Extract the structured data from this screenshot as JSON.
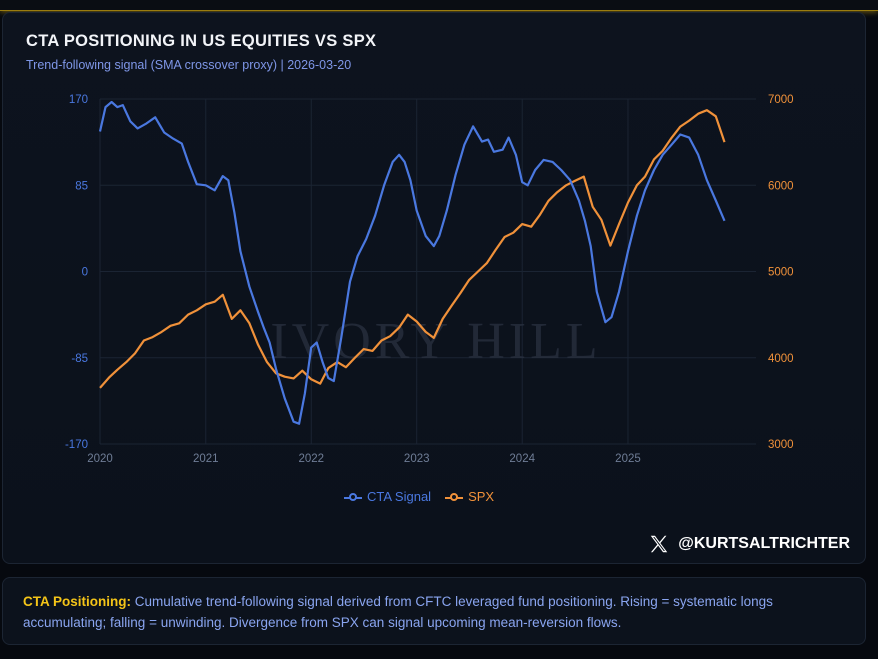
{
  "header": {
    "title": "CTA POSITIONING IN US EQUITIES VS SPX",
    "subtitle": "Trend-following signal (SMA crossover proxy) | 2026-03-20"
  },
  "colors": {
    "cta": "#4a78e0",
    "spx": "#f0913a",
    "accent": "#f5c518",
    "grid": "#1b2433"
  },
  "watermark": "IVORY HILL",
  "credit": {
    "icon": "x-logo-icon",
    "handle": "@KURTSALTRICHTER"
  },
  "note": {
    "label": "CTA Positioning:",
    "text": " Cumulative trend-following signal derived from CFTC leveraged fund positioning. Rising = systematic longs accumulating; falling = unwinding. Divergence from SPX can signal upcoming mean-reversion flows."
  },
  "chart_data": {
    "type": "line",
    "title": "CTA POSITIONING IN US EQUITIES VS SPX",
    "x_range": [
      "2020-01-01",
      "2026-03-20"
    ],
    "x_ticks": [
      "2020",
      "2021",
      "2022",
      "2023",
      "2024",
      "2025"
    ],
    "y_left": {
      "ticks": [
        "170",
        "85",
        "0",
        "-85",
        "-170"
      ],
      "range": [
        -170,
        170
      ]
    },
    "y_right": {
      "ticks": [
        "7000",
        "6000",
        "5000",
        "4000",
        "3000"
      ],
      "range": [
        3000,
        7000
      ]
    },
    "legend": {
      "position": "bottom-center"
    },
    "grid": true,
    "series": [
      {
        "name": "CTA Signal",
        "axis": "left",
        "points": [
          [
            "2020-01-01",
            138
          ],
          [
            "2020-01-20",
            162
          ],
          [
            "2020-02-10",
            167
          ],
          [
            "2020-03-01",
            162
          ],
          [
            "2020-03-20",
            164
          ],
          [
            "2020-04-15",
            148
          ],
          [
            "2020-05-10",
            141
          ],
          [
            "2020-06-10",
            146
          ],
          [
            "2020-07-10",
            152
          ],
          [
            "2020-08-10",
            137
          ],
          [
            "2020-09-10",
            131
          ],
          [
            "2020-10-10",
            126
          ],
          [
            "2020-11-01",
            108
          ],
          [
            "2020-12-01",
            86
          ],
          [
            "2021-01-01",
            85
          ],
          [
            "2021-02-01",
            80
          ],
          [
            "2021-03-01",
            94
          ],
          [
            "2021-03-20",
            90
          ],
          [
            "2021-04-10",
            58
          ],
          [
            "2021-05-01",
            20
          ],
          [
            "2021-06-01",
            -15
          ],
          [
            "2021-07-01",
            -40
          ],
          [
            "2021-07-20",
            -55
          ],
          [
            "2021-08-10",
            -70
          ],
          [
            "2021-09-01",
            -96
          ],
          [
            "2021-10-01",
            -125
          ],
          [
            "2021-11-01",
            -148
          ],
          [
            "2021-11-20",
            -150
          ],
          [
            "2021-12-10",
            -120
          ],
          [
            "2022-01-01",
            -75
          ],
          [
            "2022-01-20",
            -70
          ],
          [
            "2022-02-10",
            -90
          ],
          [
            "2022-03-01",
            -105
          ],
          [
            "2022-03-20",
            -108
          ],
          [
            "2022-04-15",
            -65
          ],
          [
            "2022-05-15",
            -10
          ],
          [
            "2022-06-10",
            15
          ],
          [
            "2022-07-10",
            32
          ],
          [
            "2022-08-10",
            55
          ],
          [
            "2022-09-10",
            85
          ],
          [
            "2022-10-10",
            108
          ],
          [
            "2022-11-01",
            115
          ],
          [
            "2022-11-20",
            108
          ],
          [
            "2022-12-10",
            90
          ],
          [
            "2023-01-01",
            60
          ],
          [
            "2023-02-01",
            35
          ],
          [
            "2023-03-01",
            25
          ],
          [
            "2023-03-20",
            35
          ],
          [
            "2023-04-15",
            60
          ],
          [
            "2023-05-15",
            95
          ],
          [
            "2023-06-15",
            125
          ],
          [
            "2023-07-15",
            143
          ],
          [
            "2023-08-15",
            128
          ],
          [
            "2023-09-05",
            130
          ],
          [
            "2023-09-25",
            118
          ],
          [
            "2023-10-25",
            120
          ],
          [
            "2023-11-15",
            132
          ],
          [
            "2023-12-10",
            115
          ],
          [
            "2024-01-01",
            88
          ],
          [
            "2024-01-20",
            85
          ],
          [
            "2024-02-15",
            100
          ],
          [
            "2024-03-15",
            110
          ],
          [
            "2024-04-15",
            108
          ],
          [
            "2024-05-15",
            100
          ],
          [
            "2024-06-15",
            90
          ],
          [
            "2024-07-15",
            70
          ],
          [
            "2024-08-05",
            50
          ],
          [
            "2024-08-25",
            25
          ],
          [
            "2024-09-15",
            -20
          ],
          [
            "2024-10-15",
            -50
          ],
          [
            "2024-11-05",
            -45
          ],
          [
            "2024-12-01",
            -20
          ],
          [
            "2025-01-01",
            20
          ],
          [
            "2025-02-01",
            55
          ],
          [
            "2025-03-01",
            80
          ],
          [
            "2025-04-01",
            100
          ],
          [
            "2025-05-01",
            115
          ],
          [
            "2025-06-01",
            125
          ],
          [
            "2025-07-01",
            135
          ],
          [
            "2025-08-01",
            132
          ],
          [
            "2025-09-01",
            115
          ],
          [
            "2025-10-01",
            90
          ],
          [
            "2025-11-01",
            70
          ],
          [
            "2025-12-01",
            50
          ]
        ]
      },
      {
        "name": "SPX",
        "axis": "right",
        "points": [
          [
            "2020-01-01",
            3650
          ],
          [
            "2020-02-01",
            3770
          ],
          [
            "2020-03-01",
            3860
          ],
          [
            "2020-04-01",
            3950
          ],
          [
            "2020-05-01",
            4050
          ],
          [
            "2020-06-01",
            4200
          ],
          [
            "2020-07-01",
            4240
          ],
          [
            "2020-08-01",
            4300
          ],
          [
            "2020-09-01",
            4370
          ],
          [
            "2020-10-01",
            4400
          ],
          [
            "2020-11-01",
            4500
          ],
          [
            "2020-12-01",
            4550
          ],
          [
            "2021-01-01",
            4620
          ],
          [
            "2021-02-01",
            4650
          ],
          [
            "2021-03-01",
            4730
          ],
          [
            "2021-04-01",
            4450
          ],
          [
            "2021-05-01",
            4550
          ],
          [
            "2021-06-01",
            4400
          ],
          [
            "2021-07-01",
            4150
          ],
          [
            "2021-08-01",
            3950
          ],
          [
            "2021-09-01",
            3820
          ],
          [
            "2021-10-01",
            3780
          ],
          [
            "2021-11-01",
            3760
          ],
          [
            "2021-12-01",
            3850
          ],
          [
            "2022-01-01",
            3750
          ],
          [
            "2022-02-01",
            3700
          ],
          [
            "2022-03-01",
            3880
          ],
          [
            "2022-04-01",
            3950
          ],
          [
            "2022-05-01",
            3890
          ],
          [
            "2022-06-01",
            4000
          ],
          [
            "2022-07-01",
            4100
          ],
          [
            "2022-08-01",
            4080
          ],
          [
            "2022-09-01",
            4200
          ],
          [
            "2022-10-01",
            4250
          ],
          [
            "2022-11-01",
            4350
          ],
          [
            "2022-12-01",
            4500
          ],
          [
            "2023-01-01",
            4420
          ],
          [
            "2023-02-01",
            4300
          ],
          [
            "2023-03-01",
            4230
          ],
          [
            "2023-04-01",
            4450
          ],
          [
            "2023-05-01",
            4600
          ],
          [
            "2023-06-01",
            4750
          ],
          [
            "2023-07-01",
            4900
          ],
          [
            "2023-08-01",
            5000
          ],
          [
            "2023-09-01",
            5100
          ],
          [
            "2023-10-01",
            5250
          ],
          [
            "2023-11-01",
            5400
          ],
          [
            "2023-12-01",
            5450
          ],
          [
            "2024-01-01",
            5550
          ],
          [
            "2024-02-01",
            5520
          ],
          [
            "2024-03-01",
            5650
          ],
          [
            "2024-04-01",
            5820
          ],
          [
            "2024-05-01",
            5920
          ],
          [
            "2024-06-01",
            6000
          ],
          [
            "2024-07-01",
            6050
          ],
          [
            "2024-08-01",
            6100
          ],
          [
            "2024-09-01",
            5750
          ],
          [
            "2024-10-01",
            5600
          ],
          [
            "2024-11-01",
            5300
          ],
          [
            "2024-12-01",
            5550
          ],
          [
            "2025-01-01",
            5800
          ],
          [
            "2025-02-01",
            6000
          ],
          [
            "2025-03-01",
            6100
          ],
          [
            "2025-04-01",
            6300
          ],
          [
            "2025-05-01",
            6400
          ],
          [
            "2025-06-01",
            6550
          ],
          [
            "2025-07-01",
            6680
          ],
          [
            "2025-08-01",
            6750
          ],
          [
            "2025-09-01",
            6830
          ],
          [
            "2025-10-01",
            6870
          ],
          [
            "2025-11-01",
            6800
          ],
          [
            "2025-12-01",
            6500
          ]
        ]
      }
    ]
  }
}
